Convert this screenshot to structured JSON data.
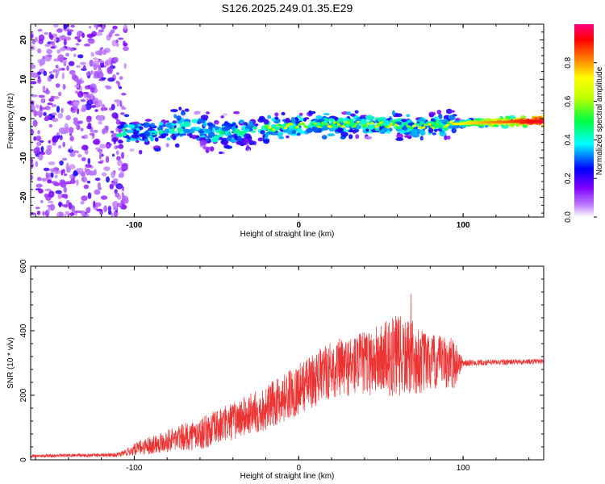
{
  "title": "S126.2025.249.01.35.E29",
  "chart_data": [
    {
      "type": "heatmap",
      "name": "spectrogram",
      "xlabel": "Height of straight line (km)",
      "ylabel": "Frequency (Hz)",
      "xlim": [
        -163,
        149
      ],
      "ylim": [
        -25,
        24
      ],
      "x_ticks": [
        -100,
        0,
        100
      ],
      "x_tick_labels": [
        "-100",
        "0",
        "100"
      ],
      "y_ticks": [
        -20,
        -10,
        0,
        10,
        20
      ],
      "y_tick_labels": [
        "-20",
        "-10",
        "0",
        "10",
        "20"
      ],
      "ridge": {
        "description_points_x": [
          -110,
          -90,
          -70,
          -50,
          -30,
          -10,
          10,
          30,
          50,
          70,
          90,
          110,
          130,
          149
        ],
        "description_points_y": [
          -3,
          -4,
          -2,
          -4,
          -3,
          -2,
          -1.5,
          -1.5,
          -1.5,
          -2,
          -1.5,
          -1,
          -0.8,
          -0.6
        ]
      },
      "colorbar": {
        "label": "Normalized spectral amplitude",
        "range": [
          0,
          1
        ],
        "ticks": [
          0.0,
          0.2,
          0.4,
          0.6,
          0.8
        ],
        "tick_labels": [
          "0.0",
          "0.2",
          "0.4",
          "0.6",
          "0.8"
        ],
        "colors": [
          "#ffffff",
          "#8000ff",
          "#0000ff",
          "#00ffff",
          "#00ff00",
          "#ffff00",
          "#ff8000",
          "#ff0000",
          "#ff0080"
        ]
      }
    },
    {
      "type": "line",
      "name": "snr",
      "xlabel": "Height of straight line (km)",
      "ylabel": "SNR (10 * v/v)",
      "xlim": [
        -163,
        149
      ],
      "ylim": [
        0,
        600
      ],
      "x_ticks": [
        -100,
        0,
        100
      ],
      "x_tick_labels": [
        "-100",
        "0",
        "100"
      ],
      "y_ticks": [
        0,
        200,
        400,
        600
      ],
      "y_tick_labels": [
        "0",
        "200",
        "400",
        "600"
      ],
      "color": "#ee3333",
      "envelope_x": [
        -163,
        -110,
        -95,
        -80,
        -60,
        -40,
        -20,
        0,
        20,
        40,
        60,
        80,
        95,
        100,
        149
      ],
      "envelope_mean": [
        12,
        15,
        40,
        60,
        80,
        120,
        160,
        220,
        280,
        300,
        320,
        300,
        300,
        300,
        305
      ],
      "envelope_spread": [
        5,
        6,
        25,
        35,
        50,
        60,
        70,
        80,
        90,
        100,
        130,
        90,
        80,
        10,
        8
      ]
    }
  ]
}
